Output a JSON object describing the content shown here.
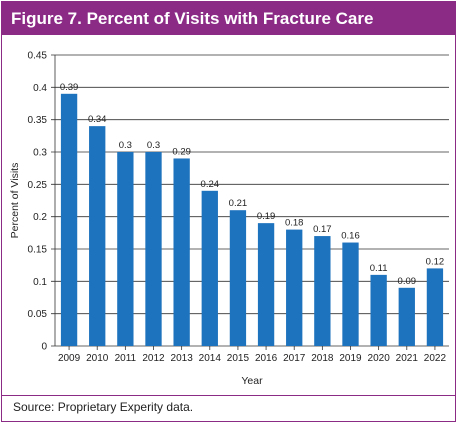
{
  "title": "Figure 7. Percent of Visits with Fracture Care",
  "source": "Source: Proprietary Experity data.",
  "colors": {
    "accent": "#8b2b86",
    "bar": "#1e73be",
    "grid": "#333333"
  },
  "chart_data": {
    "type": "bar",
    "categories": [
      "2009",
      "2010",
      "2011",
      "2012",
      "2013",
      "2014",
      "2015",
      "2016",
      "2017",
      "2018",
      "2019",
      "2020",
      "2021",
      "2022"
    ],
    "values": [
      0.39,
      0.34,
      0.3,
      0.3,
      0.29,
      0.24,
      0.21,
      0.19,
      0.18,
      0.17,
      0.16,
      0.11,
      0.09,
      0.12
    ],
    "value_labels": [
      "0.39",
      "0.34",
      "0.3",
      "0.3",
      "0.29",
      "0.24",
      "0.21",
      "0.19",
      "0.18",
      "0.17",
      "0.16",
      "0.11",
      "0.09",
      "0.12"
    ],
    "xlabel": "Year",
    "ylabel": "Percent of Visits",
    "ylim": [
      0,
      0.45
    ],
    "yticks": [
      "0",
      "0.05",
      "0.1",
      "0.15",
      "0.2",
      "0.25",
      "0.3",
      "0.35",
      "0.4",
      "0.45"
    ],
    "grid": true
  }
}
